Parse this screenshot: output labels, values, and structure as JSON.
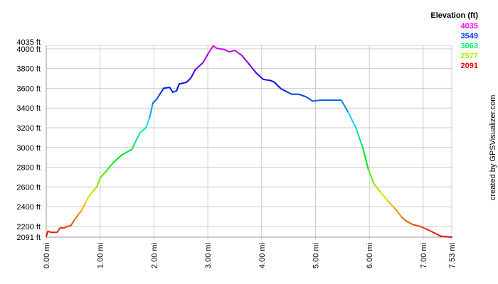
{
  "chart_data": {
    "type": "line",
    "title": "",
    "xlabel": "",
    "ylabel": "",
    "xlim": [
      0,
      7.53
    ],
    "ylim": [
      2091,
      4035
    ],
    "grid": true,
    "x_ticks": [
      0,
      1,
      2,
      3,
      4,
      5,
      6,
      7,
      7.53
    ],
    "x_tick_labels": [
      "0.00 mi",
      "1.00 mi",
      "2.00 mi",
      "3.00 mi",
      "4.00 mi",
      "5.00 mi",
      "6.00 mi",
      "7.00 mi",
      "7.53 mi"
    ],
    "y_ticks": [
      2091,
      2200,
      2400,
      2600,
      2800,
      3000,
      3200,
      3400,
      3600,
      3800,
      4000,
      4035
    ],
    "y_tick_labels": [
      "2091 ft",
      "2200 ft",
      "2400 ft",
      "2600 ft",
      "2800 ft",
      "3000 ft",
      "3200 ft",
      "3400 ft",
      "3600 ft",
      "3800 ft",
      "4000 ft",
      "4035 ft"
    ],
    "legend": {
      "title": "Elevation (ft)",
      "placement": "top-right",
      "entries": [
        {
          "label": "4035",
          "color": "#ff00ff"
        },
        {
          "label": "3549",
          "color": "#0033ff"
        },
        {
          "label": "3063",
          "color": "#00ee66"
        },
        {
          "label": "2577",
          "color": "#aaee00"
        },
        {
          "label": "2091",
          "color": "#ee0000"
        }
      ]
    },
    "color_scale": "elevation hue gradient red-yellow-green-cyan-blue-magenta",
    "x": [
      0,
      0.03,
      0.09,
      0.2,
      0.26,
      0.33,
      0.4,
      0.46,
      0.53,
      0.59,
      0.66,
      0.73,
      0.79,
      0.86,
      0.94,
      1.0,
      1.12,
      1.25,
      1.39,
      1.52,
      1.59,
      1.65,
      1.74,
      1.85,
      1.92,
      1.98,
      2.05,
      2.11,
      2.18,
      2.29,
      2.35,
      2.42,
      2.47,
      2.6,
      2.68,
      2.77,
      2.91,
      3.01,
      3.1,
      3.17,
      3.3,
      3.4,
      3.5,
      3.63,
      3.76,
      3.9,
      4.03,
      4.16,
      4.23,
      4.36,
      4.49,
      4.56,
      4.69,
      4.82,
      4.95,
      5.09,
      5.35,
      5.48,
      5.61,
      5.75,
      5.88,
      5.98,
      6.08,
      6.21,
      6.34,
      6.47,
      6.6,
      6.67,
      6.8,
      6.94,
      7.07,
      7.2,
      7.33,
      7.53
    ],
    "y": [
      2098,
      2150,
      2140,
      2140,
      2185,
      2185,
      2200,
      2210,
      2270,
      2315,
      2365,
      2440,
      2505,
      2550,
      2600,
      2690,
      2765,
      2850,
      2920,
      2960,
      2980,
      3050,
      3150,
      3200,
      3305,
      3450,
      3490,
      3540,
      3600,
      3610,
      3560,
      3575,
      3645,
      3660,
      3700,
      3790,
      3860,
      3955,
      4030,
      4005,
      3995,
      3970,
      3985,
      3935,
      3850,
      3755,
      3690,
      3680,
      3665,
      3595,
      3560,
      3540,
      3540,
      3515,
      3470,
      3480,
      3480,
      3480,
      3355,
      3200,
      2995,
      2780,
      2635,
      2545,
      2460,
      2385,
      2295,
      2260,
      2220,
      2200,
      2170,
      2135,
      2100,
      2091
    ]
  },
  "credit": "created by GPSVisualizer.com",
  "colors": {
    "grid": "#cccccc",
    "axis": "#999999"
  }
}
